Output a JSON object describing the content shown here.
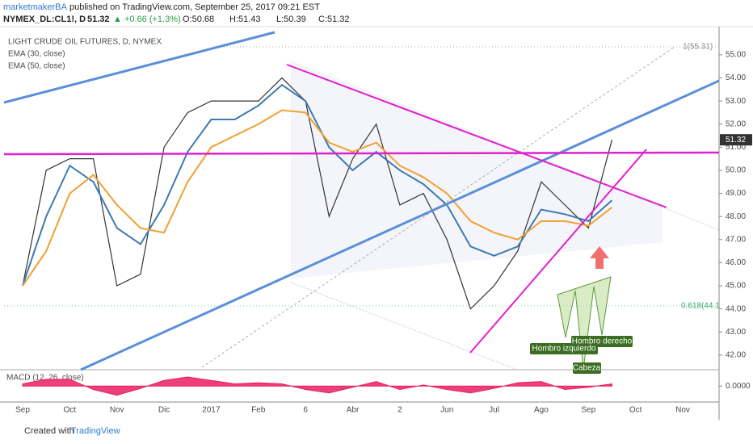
{
  "header": {
    "author": "marketmakerBA",
    "published": "published on TradingView.com, September 25, 2017 09:21 EST",
    "symbol": "NYMEX_DL:CL1!, D",
    "last": "51.32",
    "change": "▲ +0.66 (+1.3%)",
    "open": "O:50.68",
    "high": "H:51.43",
    "low": "L:50.39",
    "close": "C:51.32"
  },
  "footer": {
    "created": "Created with",
    "brand": "TradingView"
  },
  "annotations": {
    "fib_top": "1(55.31)",
    "fib_618": "0.618(44.1",
    "left_shoulder": "Hombro izquierdo",
    "right_shoulder": "Hombro derecho",
    "head": "Cabeza"
  },
  "chart_data": [
    {
      "type": "line",
      "title": "LIGHT CRUDE OIL FUTURES, D, NYMEX",
      "categories": [
        "Sep",
        null,
        "Oct",
        null,
        "Nov",
        null,
        "Dic",
        null,
        "2017",
        null,
        "Feb",
        null,
        "6",
        null,
        "Abr",
        null,
        "2",
        null,
        "Jun",
        null,
        "Jul",
        null,
        "Ago",
        null,
        "Sep",
        null,
        "Oct",
        null,
        "Nov"
      ],
      "values": [
        45,
        50,
        50.5,
        50.5,
        45,
        45.5,
        51,
        52.5,
        53,
        53,
        53,
        54,
        53,
        48,
        50.5,
        52,
        48.5,
        49,
        47,
        44,
        45,
        46.5,
        49.5,
        48.5,
        47.5,
        51.32,
        null,
        null,
        null
      ],
      "color": "#333333",
      "series": [
        {
          "name": "EMA (30, close)",
          "color": "#3d7ab0",
          "values": [
            45,
            48,
            50.2,
            49.5,
            47.5,
            46.8,
            48.5,
            50.8,
            52.2,
            52.2,
            52.8,
            53.7,
            53,
            51,
            50,
            50.8,
            50,
            49.4,
            48.5,
            46.7,
            46.3,
            46.7,
            48.3,
            48.1,
            47.8,
            48.7,
            null,
            null,
            null
          ]
        },
        {
          "name": "EMA (50, close)",
          "color": "#f0a030",
          "values": [
            45,
            46.5,
            49,
            49.8,
            48.5,
            47.5,
            47.3,
            49.5,
            51,
            51.5,
            52,
            52.6,
            52.5,
            51.2,
            50.8,
            51.2,
            50.2,
            49.7,
            49,
            47.8,
            47.3,
            47,
            47.8,
            47.8,
            47.6,
            48.4,
            null,
            null,
            null
          ]
        }
      ],
      "ylim": [
        41.47,
        56.15
      ],
      "yticks": [
        {
          "value": 42,
          "label": "42.00"
        },
        {
          "value": 43,
          "label": "43.00"
        },
        {
          "value": 44,
          "label": "44.00"
        },
        {
          "value": 45,
          "label": "45.00"
        },
        {
          "value": 46,
          "label": "46.00"
        },
        {
          "value": 47,
          "label": "47.00"
        },
        {
          "value": 48,
          "label": "48.00"
        },
        {
          "value": 49,
          "label": "49.00"
        },
        {
          "value": 50,
          "label": "50.00"
        },
        {
          "value": 51,
          "label": "51.00"
        },
        {
          "value": 52,
          "label": "52.00"
        },
        {
          "value": 53,
          "label": "53.00"
        },
        {
          "value": 54,
          "label": "54.00"
        },
        {
          "value": 55,
          "label": "55.00"
        }
      ]
    },
    {
      "type": "area",
      "title": "MACD (12, 26, close)",
      "color": "#e91e63",
      "values": [
        0.2,
        0.6,
        0.6,
        -0.3,
        -0.8,
        -0.2,
        0.5,
        0.8,
        0.5,
        0.2,
        0.3,
        0.2,
        -0.3,
        -0.6,
        -0.1,
        0.4,
        -0.3,
        0.1,
        -0.3,
        -0.6,
        -0.2,
        0.3,
        0.4,
        -0.3,
        -0.1,
        0.2,
        null,
        null,
        null
      ],
      "ylim": [
        -1.4,
        1.3
      ],
      "yticks": [
        {
          "value": 0,
          "label": "0.0000"
        }
      ]
    }
  ]
}
